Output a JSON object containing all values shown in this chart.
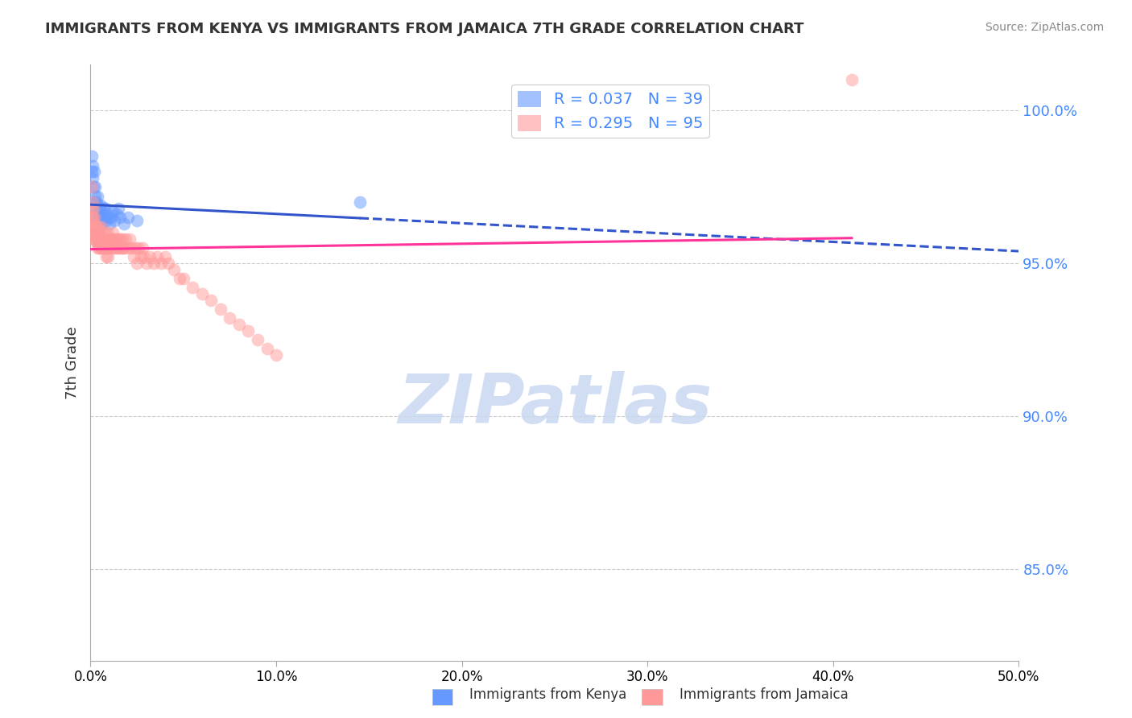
{
  "title": "IMMIGRANTS FROM KENYA VS IMMIGRANTS FROM JAMAICA 7TH GRADE CORRELATION CHART",
  "source": "Source: ZipAtlas.com",
  "ylabel": "7th Grade",
  "xlim": [
    0.0,
    50.0
  ],
  "ylim": [
    82.0,
    101.5
  ],
  "y_ticks": [
    85.0,
    90.0,
    95.0,
    100.0
  ],
  "y_tick_labels": [
    "85.0%",
    "90.0%",
    "95.0%",
    "100.0%"
  ],
  "legend_kenya": "R = 0.037   N = 39",
  "legend_jamaica": "R = 0.295   N = 95",
  "legend_label_kenya": "Immigrants from Kenya",
  "legend_label_jamaica": "Immigrants from Jamaica",
  "kenya_color": "#6699FF",
  "jamaica_color": "#FF9999",
  "kenya_R": 0.037,
  "kenya_N": 39,
  "jamaica_R": 0.295,
  "jamaica_N": 95,
  "watermark": "ZIPatlas",
  "watermark_color": "#C8D8F0",
  "kenya_x": [
    0.05,
    0.08,
    0.1,
    0.12,
    0.15,
    0.18,
    0.2,
    0.22,
    0.25,
    0.28,
    0.3,
    0.32,
    0.35,
    0.38,
    0.4,
    0.42,
    0.45,
    0.48,
    0.5,
    0.55,
    0.6,
    0.65,
    0.7,
    0.75,
    0.8,
    0.85,
    0.9,
    0.95,
    1.0,
    1.1,
    1.2,
    1.3,
    1.4,
    1.5,
    1.6,
    1.8,
    2.0,
    2.5,
    14.5
  ],
  "kenya_y": [
    98.0,
    98.5,
    97.8,
    98.2,
    97.5,
    97.0,
    98.0,
    97.2,
    97.5,
    96.8,
    97.0,
    96.5,
    97.2,
    96.7,
    96.9,
    96.4,
    96.6,
    96.8,
    96.5,
    96.9,
    96.7,
    96.3,
    96.8,
    96.5,
    96.8,
    96.4,
    96.6,
    96.5,
    96.3,
    96.5,
    96.7,
    96.4,
    96.6,
    96.8,
    96.5,
    96.3,
    96.5,
    96.4,
    97.0
  ],
  "jamaica_x": [
    0.05,
    0.08,
    0.1,
    0.12,
    0.15,
    0.18,
    0.2,
    0.22,
    0.25,
    0.28,
    0.3,
    0.32,
    0.35,
    0.38,
    0.4,
    0.42,
    0.45,
    0.48,
    0.5,
    0.55,
    0.6,
    0.65,
    0.7,
    0.75,
    0.8,
    0.85,
    0.9,
    0.95,
    1.0,
    1.05,
    1.1,
    1.15,
    1.2,
    1.25,
    1.3,
    1.35,
    1.4,
    1.45,
    1.5,
    1.55,
    1.6,
    1.65,
    1.7,
    1.75,
    1.8,
    1.9,
    2.0,
    2.1,
    2.2,
    2.3,
    2.4,
    2.5,
    2.6,
    2.7,
    2.8,
    2.9,
    3.0,
    3.2,
    3.4,
    3.6,
    3.8,
    4.0,
    4.2,
    4.5,
    4.8,
    5.0,
    5.5,
    6.0,
    6.5,
    7.0,
    7.5,
    8.0,
    8.5,
    9.0,
    9.5,
    10.0,
    0.07,
    0.13,
    0.17,
    0.23,
    0.27,
    0.33,
    0.37,
    0.43,
    0.47,
    0.52,
    0.58,
    0.63,
    0.68,
    0.73,
    0.78,
    0.83,
    0.88,
    0.93,
    41.0
  ],
  "jamaica_y": [
    97.5,
    96.8,
    97.0,
    96.5,
    96.8,
    96.2,
    96.5,
    96.0,
    96.3,
    95.8,
    96.2,
    95.7,
    96.0,
    95.8,
    96.2,
    95.6,
    95.9,
    95.5,
    96.0,
    95.8,
    96.2,
    95.7,
    95.5,
    96.0,
    95.8,
    95.5,
    96.0,
    95.7,
    95.5,
    95.8,
    95.5,
    95.8,
    96.0,
    95.5,
    95.8,
    95.5,
    95.8,
    95.5,
    95.8,
    95.5,
    95.8,
    95.5,
    95.8,
    95.5,
    95.5,
    95.8,
    95.5,
    95.8,
    95.5,
    95.2,
    95.5,
    95.0,
    95.5,
    95.2,
    95.5,
    95.2,
    95.0,
    95.2,
    95.0,
    95.2,
    95.0,
    95.2,
    95.0,
    94.8,
    94.5,
    94.5,
    94.2,
    94.0,
    93.8,
    93.5,
    93.2,
    93.0,
    92.8,
    92.5,
    92.2,
    92.0,
    96.5,
    96.0,
    95.8,
    96.2,
    95.8,
    96.0,
    95.5,
    95.8,
    95.5,
    95.8,
    95.5,
    95.8,
    95.5,
    95.8,
    95.5,
    95.2,
    95.5,
    95.2,
    101.0
  ]
}
